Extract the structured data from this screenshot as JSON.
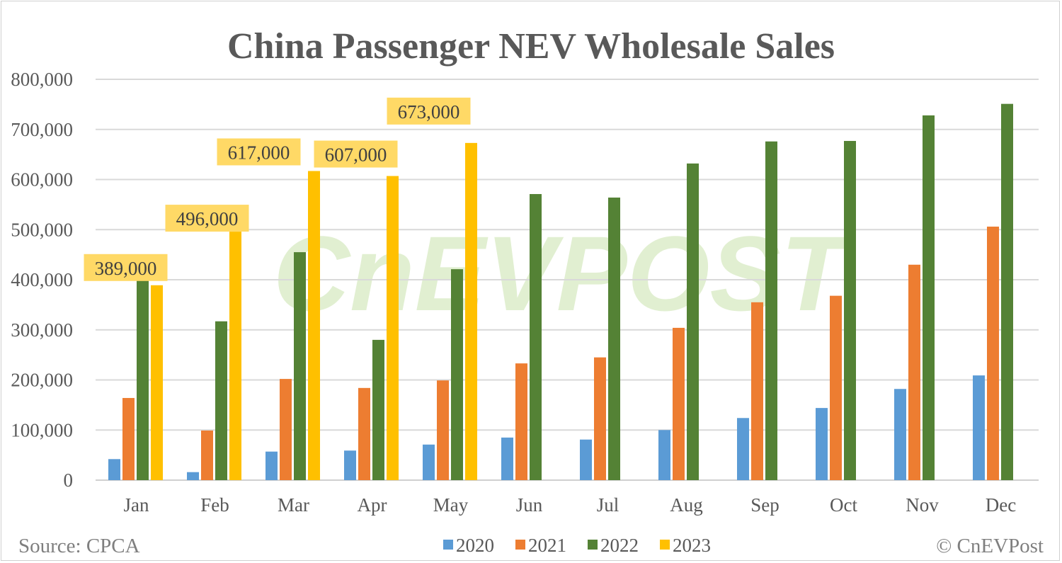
{
  "chart_data": {
    "type": "bar",
    "title": "China Passenger NEV Wholesale Sales",
    "categories": [
      "Jan",
      "Feb",
      "Mar",
      "Apr",
      "May",
      "Jun",
      "Jul",
      "Aug",
      "Sep",
      "Oct",
      "Nov",
      "Dec"
    ],
    "series": [
      {
        "name": "2020",
        "color": "#5b9bd5",
        "values": [
          42000,
          16000,
          57000,
          59000,
          71000,
          85000,
          81000,
          100000,
          124000,
          144000,
          182000,
          209000
        ]
      },
      {
        "name": "2021",
        "color": "#ed7d31",
        "values": [
          164000,
          99000,
          202000,
          184000,
          199000,
          233000,
          245000,
          304000,
          355000,
          368000,
          430000,
          506000
        ]
      },
      {
        "name": "2022",
        "color": "#548235",
        "values": [
          403000,
          317000,
          455000,
          280000,
          421000,
          571000,
          564000,
          632000,
          676000,
          677000,
          728000,
          751000
        ]
      },
      {
        "name": "2023",
        "color": "#ffc000",
        "values": [
          389000,
          496000,
          617000,
          607000,
          673000,
          null,
          null,
          null,
          null,
          null,
          null,
          null
        ]
      }
    ],
    "data_labels": [
      "389,000",
      "496,000",
      "617,000",
      "607,000",
      "673,000"
    ],
    "data_label_bg": "#ffd966",
    "yticks": [
      "0",
      "100,000",
      "200,000",
      "300,000",
      "400,000",
      "500,000",
      "600,000",
      "700,000",
      "800,000"
    ],
    "ylim": [
      0,
      800000
    ],
    "grid": true,
    "legend_position": "bottom",
    "xlabel": "",
    "ylabel": ""
  },
  "footer": {
    "source": "Source: CPCA",
    "credit": "© CnEVPost"
  },
  "watermark": "CnEVPOST"
}
